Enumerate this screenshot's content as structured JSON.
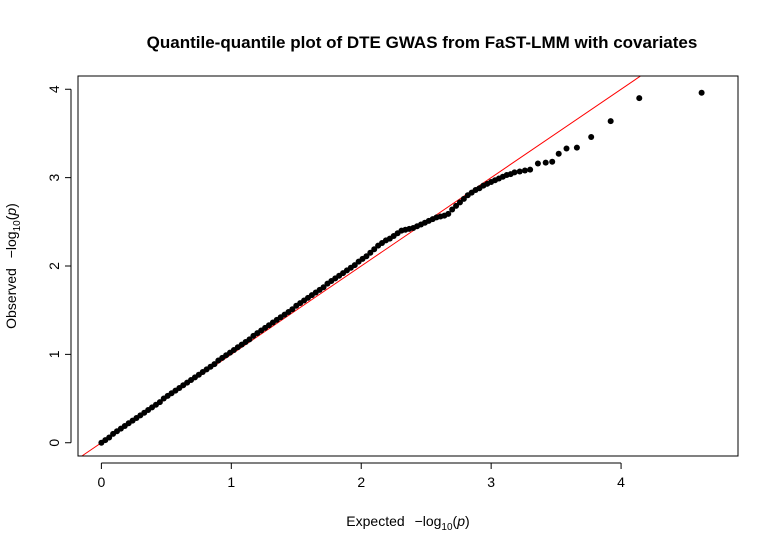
{
  "chart_data": {
    "type": "scatter",
    "title": "Quantile-quantile plot of DTE GWAS from FaST-LMM with covariates",
    "xlabel": {
      "prefix": "Expected",
      "main": "−log",
      "sub": "10",
      "var": "p"
    },
    "ylabel": {
      "prefix": "Observed",
      "main": "−log",
      "sub": "10",
      "var": "p"
    },
    "xlim": [
      -0.18,
      4.9
    ],
    "ylim": [
      -0.15,
      4.15
    ],
    "x_ticks": [
      0,
      1,
      2,
      3,
      4
    ],
    "y_ticks": [
      0,
      1,
      2,
      3,
      4
    ],
    "x_tick_labels": [
      "0",
      "1",
      "2",
      "3",
      "4"
    ],
    "y_tick_labels": [
      "0",
      "1",
      "2",
      "3",
      "4"
    ],
    "reference_line": {
      "slope": 1,
      "intercept": 0,
      "color": "#ff0000"
    },
    "point_color": "#000000",
    "series": [
      {
        "points": [
          [
            0.0,
            0.0
          ],
          [
            0.03,
            0.03
          ],
          [
            0.06,
            0.06
          ],
          [
            0.09,
            0.1
          ],
          [
            0.12,
            0.13
          ],
          [
            0.15,
            0.16
          ],
          [
            0.18,
            0.19
          ],
          [
            0.21,
            0.22
          ],
          [
            0.24,
            0.25
          ],
          [
            0.27,
            0.28
          ],
          [
            0.3,
            0.31
          ],
          [
            0.33,
            0.34
          ],
          [
            0.36,
            0.37
          ],
          [
            0.39,
            0.4
          ],
          [
            0.42,
            0.43
          ],
          [
            0.45,
            0.46
          ],
          [
            0.48,
            0.5
          ],
          [
            0.51,
            0.53
          ],
          [
            0.54,
            0.56
          ],
          [
            0.57,
            0.59
          ],
          [
            0.6,
            0.62
          ],
          [
            0.63,
            0.65
          ],
          [
            0.66,
            0.68
          ],
          [
            0.69,
            0.71
          ],
          [
            0.72,
            0.74
          ],
          [
            0.75,
            0.77
          ],
          [
            0.78,
            0.8
          ],
          [
            0.81,
            0.83
          ],
          [
            0.84,
            0.86
          ],
          [
            0.87,
            0.89
          ],
          [
            0.9,
            0.93
          ],
          [
            0.93,
            0.96
          ],
          [
            0.96,
            0.99
          ],
          [
            0.99,
            1.02
          ],
          [
            1.02,
            1.05
          ],
          [
            1.05,
            1.08
          ],
          [
            1.08,
            1.11
          ],
          [
            1.11,
            1.14
          ],
          [
            1.14,
            1.17
          ],
          [
            1.17,
            1.21
          ],
          [
            1.2,
            1.24
          ],
          [
            1.23,
            1.27
          ],
          [
            1.26,
            1.3
          ],
          [
            1.29,
            1.33
          ],
          [
            1.32,
            1.36
          ],
          [
            1.35,
            1.39
          ],
          [
            1.38,
            1.42
          ],
          [
            1.41,
            1.45
          ],
          [
            1.44,
            1.48
          ],
          [
            1.47,
            1.51
          ],
          [
            1.5,
            1.55
          ],
          [
            1.53,
            1.58
          ],
          [
            1.56,
            1.61
          ],
          [
            1.59,
            1.64
          ],
          [
            1.62,
            1.67
          ],
          [
            1.65,
            1.7
          ],
          [
            1.68,
            1.73
          ],
          [
            1.71,
            1.76
          ],
          [
            1.74,
            1.8
          ],
          [
            1.77,
            1.83
          ],
          [
            1.8,
            1.86
          ],
          [
            1.83,
            1.89
          ],
          [
            1.86,
            1.92
          ],
          [
            1.89,
            1.95
          ],
          [
            1.92,
            1.98
          ],
          [
            1.95,
            2.01
          ],
          [
            1.98,
            2.05
          ],
          [
            2.01,
            2.08
          ],
          [
            2.04,
            2.11
          ],
          [
            2.07,
            2.15
          ],
          [
            2.1,
            2.19
          ],
          [
            2.13,
            2.23
          ],
          [
            2.16,
            2.26
          ],
          [
            2.19,
            2.29
          ],
          [
            2.22,
            2.31
          ],
          [
            2.25,
            2.34
          ],
          [
            2.28,
            2.37
          ],
          [
            2.31,
            2.4
          ],
          [
            2.34,
            2.41
          ],
          [
            2.37,
            2.42
          ],
          [
            2.4,
            2.43
          ],
          [
            2.43,
            2.45
          ],
          [
            2.46,
            2.47
          ],
          [
            2.49,
            2.49
          ],
          [
            2.52,
            2.51
          ],
          [
            2.55,
            2.53
          ],
          [
            2.58,
            2.55
          ],
          [
            2.61,
            2.56
          ],
          [
            2.64,
            2.57
          ],
          [
            2.67,
            2.59
          ],
          [
            2.7,
            2.64
          ],
          [
            2.73,
            2.68
          ],
          [
            2.76,
            2.72
          ],
          [
            2.79,
            2.76
          ],
          [
            2.82,
            2.8
          ],
          [
            2.85,
            2.83
          ],
          [
            2.88,
            2.86
          ],
          [
            2.91,
            2.88
          ],
          [
            2.94,
            2.91
          ],
          [
            2.97,
            2.93
          ],
          [
            3.0,
            2.95
          ],
          [
            3.03,
            2.97
          ],
          [
            3.06,
            2.99
          ],
          [
            3.09,
            3.01
          ],
          [
            3.12,
            3.03
          ],
          [
            3.15,
            3.04
          ],
          [
            3.18,
            3.06
          ],
          [
            3.22,
            3.07
          ],
          [
            3.26,
            3.08
          ],
          [
            3.3,
            3.09
          ],
          [
            3.36,
            3.16
          ],
          [
            3.42,
            3.17
          ],
          [
            3.47,
            3.18
          ],
          [
            3.52,
            3.27
          ],
          [
            3.58,
            3.33
          ],
          [
            3.66,
            3.34
          ],
          [
            3.77,
            3.46
          ],
          [
            3.92,
            3.64
          ],
          [
            4.14,
            3.9
          ],
          [
            4.62,
            3.96
          ]
        ]
      }
    ]
  }
}
